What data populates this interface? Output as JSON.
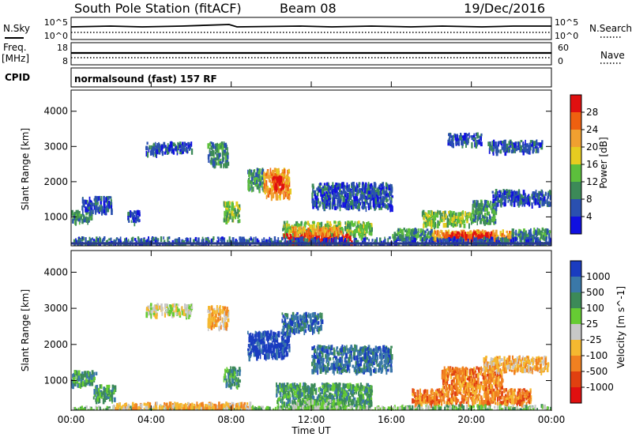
{
  "header": {
    "station": "South Pole Station (fitACF)",
    "beam": "Beam 08",
    "date": "19/Dec/2016"
  },
  "strips": {
    "nsky": {
      "label": "N.Sky",
      "tick_top": "10^5",
      "tick_bottom": "10^0"
    },
    "nsearch": {
      "label": "N.Search",
      "tick_top": "10^5",
      "tick_bottom": "10^0"
    },
    "freq": {
      "label_line1": "Freq.",
      "label_line2": "[MHz]",
      "tick_top": "18",
      "tick_bottom": "8"
    },
    "nave": {
      "label": "Nave",
      "tick_top": "60",
      "tick_bottom": "0"
    },
    "cpid": {
      "label": "CPID",
      "value": "normalsound (fast) 157 RF"
    }
  },
  "chart_data": [
    {
      "type": "heatmap",
      "name": "power",
      "ylabel": "Slant Range [km]",
      "xlabel": "Time UT",
      "x_ticks": [
        "00:00",
        "04:00",
        "08:00",
        "12:00",
        "16:00",
        "20:00",
        "00:00"
      ],
      "y_ticks": [
        "1000",
        "2000",
        "3000",
        "4000"
      ],
      "ylim": [
        180,
        4600
      ],
      "xlim_hours": [
        0,
        24
      ],
      "colorbar": {
        "label": "Power [dB]",
        "ticks": [
          "4",
          "8",
          "12",
          "16",
          "20",
          "24",
          "28"
        ],
        "colors": [
          "#1010e0",
          "#2a50b0",
          "#3c8a58",
          "#5cbf3c",
          "#e6cc20",
          "#f0a030",
          "#ef6010",
          "#e01010"
        ]
      },
      "blobs": [
        {
          "t0": 0.0,
          "t1": 1.0,
          "r0": 900,
          "r1": 1200,
          "v": 2
        },
        {
          "t0": 0.5,
          "t1": 2.0,
          "r0": 1200,
          "r1": 1600,
          "v": 1
        },
        {
          "t0": 2.8,
          "t1": 3.4,
          "r0": 900,
          "r1": 1200,
          "v": 1
        },
        {
          "t0": 3.7,
          "t1": 6.0,
          "r0": 2850,
          "r1": 3150,
          "v": 1
        },
        {
          "t0": 6.8,
          "t1": 7.8,
          "r0": 2500,
          "r1": 3150,
          "v": 2
        },
        {
          "t0": 7.6,
          "t1": 8.4,
          "r0": 900,
          "r1": 1450,
          "v": 3
        },
        {
          "t0": 8.8,
          "t1": 9.6,
          "r0": 1800,
          "r1": 2400,
          "v": 2
        },
        {
          "t0": 9.6,
          "t1": 10.9,
          "r0": 1600,
          "r1": 2400,
          "v": 5
        },
        {
          "t0": 10.0,
          "t1": 10.6,
          "r0": 1800,
          "r1": 2200,
          "v": 7
        },
        {
          "t0": 10.5,
          "t1": 15.0,
          "r0": 500,
          "r1": 900,
          "v": 3
        },
        {
          "t0": 10.6,
          "t1": 14.0,
          "r0": 250,
          "r1": 550,
          "v": 7
        },
        {
          "t0": 11.0,
          "t1": 13.5,
          "r0": 550,
          "r1": 750,
          "v": 5
        },
        {
          "t0": 12.0,
          "t1": 16.0,
          "r0": 1300,
          "r1": 2000,
          "v": 1
        },
        {
          "t0": 16.0,
          "t1": 18.0,
          "r0": 400,
          "r1": 700,
          "v": 2
        },
        {
          "t0": 18.0,
          "t1": 22.0,
          "r0": 350,
          "r1": 650,
          "v": 5
        },
        {
          "t0": 18.6,
          "t1": 21.0,
          "r0": 450,
          "r1": 600,
          "v": 7
        },
        {
          "t0": 17.5,
          "t1": 20.0,
          "r0": 800,
          "r1": 1200,
          "v": 3
        },
        {
          "t0": 20.0,
          "t1": 21.2,
          "r0": 900,
          "r1": 1500,
          "v": 2
        },
        {
          "t0": 21.0,
          "t1": 24.0,
          "r0": 1400,
          "r1": 1800,
          "v": 1
        },
        {
          "t0": 22.0,
          "t1": 24.0,
          "r0": 400,
          "r1": 700,
          "v": 2
        },
        {
          "t0": 18.8,
          "t1": 20.5,
          "r0": 3100,
          "r1": 3400,
          "v": 1
        },
        {
          "t0": 20.8,
          "t1": 23.5,
          "r0": 2900,
          "r1": 3200,
          "v": 1
        },
        {
          "t0": 0.0,
          "t1": 24.0,
          "r0": 200,
          "r1": 450,
          "v": 1
        }
      ]
    },
    {
      "type": "heatmap",
      "name": "velocity",
      "ylabel": "Slant Range [km]",
      "xlabel": "Time UT",
      "x_ticks": [
        "00:00",
        "04:00",
        "08:00",
        "12:00",
        "16:00",
        "20:00",
        "00:00"
      ],
      "y_ticks": [
        "1000",
        "2000",
        "3000",
        "4000"
      ],
      "ylim": [
        180,
        4600
      ],
      "xlim_hours": [
        0,
        24
      ],
      "colorbar": {
        "label": "Velocity [m s^-1]",
        "ticks": [
          "1000",
          "500",
          "100",
          "25",
          "-25",
          "-100",
          "-500",
          "-1000"
        ],
        "colors": [
          "#1a3cc0",
          "#3a78a8",
          "#3c8a58",
          "#66cc33",
          "#c8c8c8",
          "#f5b830",
          "#f08020",
          "#e04010",
          "#e01010"
        ]
      },
      "blobs": [
        {
          "t0": 0.0,
          "t1": 1.2,
          "r0": 900,
          "r1": 1300,
          "v": 2
        },
        {
          "t0": 1.0,
          "t1": 2.2,
          "r0": 500,
          "r1": 900,
          "v": 2
        },
        {
          "t0": 3.7,
          "t1": 6.0,
          "r0": 2850,
          "r1": 3150,
          "v": 4
        },
        {
          "t0": 6.8,
          "t1": 7.8,
          "r0": 2500,
          "r1": 3100,
          "v": 5
        },
        {
          "t0": 7.6,
          "t1": 8.4,
          "r0": 900,
          "r1": 1400,
          "v": 2
        },
        {
          "t0": 8.8,
          "t1": 10.9,
          "r0": 1700,
          "r1": 2400,
          "v": 0
        },
        {
          "t0": 10.2,
          "t1": 15.0,
          "r0": 300,
          "r1": 950,
          "v": 2
        },
        {
          "t0": 11.0,
          "t1": 13.5,
          "r0": 250,
          "r1": 500,
          "v": 3
        },
        {
          "t0": 12.0,
          "t1": 16.0,
          "r0": 1300,
          "r1": 2000,
          "v": 1
        },
        {
          "t0": 0.0,
          "t1": 16.0,
          "r0": 180,
          "r1": 320,
          "v": 3
        },
        {
          "t0": 2.0,
          "t1": 9.0,
          "r0": 250,
          "r1": 420,
          "v": 5
        },
        {
          "t0": 17.0,
          "t1": 23.0,
          "r0": 400,
          "r1": 800,
          "v": 6
        },
        {
          "t0": 18.5,
          "t1": 21.5,
          "r0": 800,
          "r1": 1400,
          "v": 6
        },
        {
          "t0": 20.5,
          "t1": 23.8,
          "r0": 1300,
          "r1": 1700,
          "v": 5
        },
        {
          "t0": 16.0,
          "t1": 24.0,
          "r0": 180,
          "r1": 350,
          "v": 3
        },
        {
          "t0": 10.5,
          "t1": 12.5,
          "r0": 2400,
          "r1": 2900,
          "v": 1
        }
      ]
    }
  ]
}
